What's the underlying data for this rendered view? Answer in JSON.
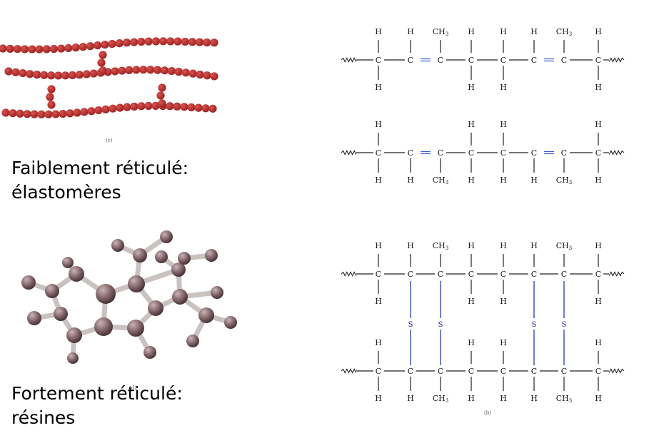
{
  "captions": {
    "weak_line1": "Faiblement réticulé:",
    "weak_line2": "élastomères",
    "strong_line1": "Fortement réticulé:",
    "strong_line2": "résines"
  },
  "panel_labels": {
    "a": "(c)",
    "b": "(d)",
    "c": "(b)"
  },
  "atoms": {
    "carbon": "C",
    "hydrogen": "H",
    "methyl": "CH",
    "methyl_sub": "3",
    "sulfur": "S"
  },
  "colors": {
    "chain_bead": "#9b2020",
    "ball": "#7a5c62",
    "stick": "#c9c2c0",
    "double_bond": "#3a5fcd",
    "sulfur_bridge": "#2a3aa8"
  },
  "structures": {
    "chain_1": {
      "top": [
        "H",
        "H",
        "CH3",
        "H",
        "H",
        "H",
        "CH3",
        "H"
      ],
      "bottom": [
        "H",
        "",
        "",
        "H",
        "H",
        "",
        "",
        "H"
      ],
      "bonds": [
        "single",
        "double",
        "single",
        "single",
        "single",
        "double",
        "single"
      ]
    },
    "chain_2": {
      "top": [
        "H",
        "",
        "",
        "H",
        "H",
        "",
        "",
        "H"
      ],
      "bottom": [
        "H",
        "H",
        "CH3",
        "H",
        "H",
        "H",
        "CH3",
        "H"
      ],
      "bonds": [
        "single",
        "double",
        "single",
        "single",
        "single",
        "double",
        "single"
      ]
    },
    "vulcanized_top": {
      "top": [
        "H",
        "H",
        "CH3",
        "H",
        "H",
        "H",
        "CH3",
        "H"
      ],
      "bottom": [
        "H",
        "S",
        "S",
        "H",
        "H",
        "S",
        "S",
        "H"
      ],
      "bonds": [
        "single",
        "single",
        "single",
        "single",
        "single",
        "single",
        "single"
      ]
    },
    "vulcanized_bottom": {
      "top": [
        "H",
        "",
        "",
        "H",
        "H",
        "",
        "",
        "H"
      ],
      "bottom": [
        "H",
        "H",
        "CH3",
        "H",
        "H",
        "H",
        "CH3",
        "H"
      ],
      "bonds": [
        "single",
        "single",
        "single",
        "single",
        "single",
        "single",
        "single"
      ]
    }
  }
}
